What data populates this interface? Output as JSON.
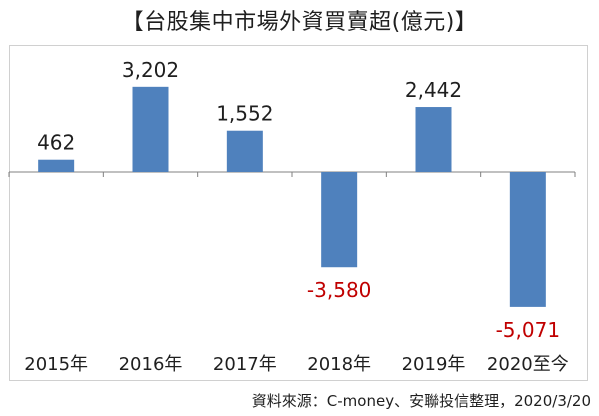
{
  "title": "【台股集中市場外資買賣超(億元)】",
  "source": "資料來源：C-money、安聯投信整理，2020/3/20",
  "colors": {
    "bar": "#4f81bd",
    "positive_label": "#1f1f1f",
    "negative_label": "#c00000",
    "axis": "#808080"
  },
  "chart_data": {
    "type": "bar",
    "categories": [
      "2015年",
      "2016年",
      "2017年",
      "2018年",
      "2019年",
      "2020至今"
    ],
    "values": [
      462,
      3202,
      1552,
      -3580,
      2442,
      -5071
    ],
    "data_labels": [
      "462",
      "3,202",
      "1,552",
      "-3,580",
      "2,442",
      "-5,071"
    ],
    "title": "【台股集中市場外資買賣超(億元)】",
    "xlabel": "",
    "ylabel": "",
    "ylim": [
      -5600,
      3900
    ],
    "grid": false,
    "legend": "none"
  }
}
